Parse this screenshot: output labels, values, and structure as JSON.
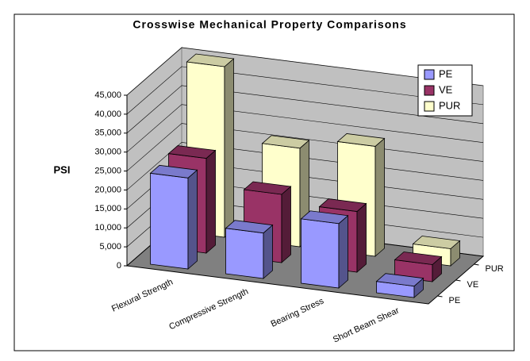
{
  "chart_data": {
    "type": "bar3d",
    "title": "Crosswise Mechanical Property Comparisons",
    "y_label": "PSI",
    "categories": [
      "Flexural Strength",
      "Compressive Strength",
      "Bearing Stress",
      "Short Beam Shear"
    ],
    "series": [
      {
        "name": "PE",
        "color": "#9999ff",
        "values": [
          24000,
          12000,
          17000,
          3000
        ]
      },
      {
        "name": "VE",
        "color": "#993366",
        "values": [
          25000,
          18000,
          16000,
          4500
        ]
      },
      {
        "name": "PUR",
        "color": "#ffffcc",
        "values": [
          45000,
          26000,
          29000,
          4500
        ]
      }
    ],
    "ylim": [
      0,
      45000
    ],
    "yticks": [
      {
        "value": 0,
        "label": "0"
      },
      {
        "value": 5000,
        "label": "5,000"
      },
      {
        "value": 10000,
        "label": "10,000"
      },
      {
        "value": 15000,
        "label": "15,000"
      },
      {
        "value": 20000,
        "label": "20,000"
      },
      {
        "value": 25000,
        "label": "25,000"
      },
      {
        "value": 30000,
        "label": "30,000"
      },
      {
        "value": 35000,
        "label": "35,000"
      },
      {
        "value": 40000,
        "label": "40,000"
      },
      {
        "value": 45000,
        "label": "45,000"
      }
    ],
    "grid": true,
    "legend": "upper right"
  }
}
